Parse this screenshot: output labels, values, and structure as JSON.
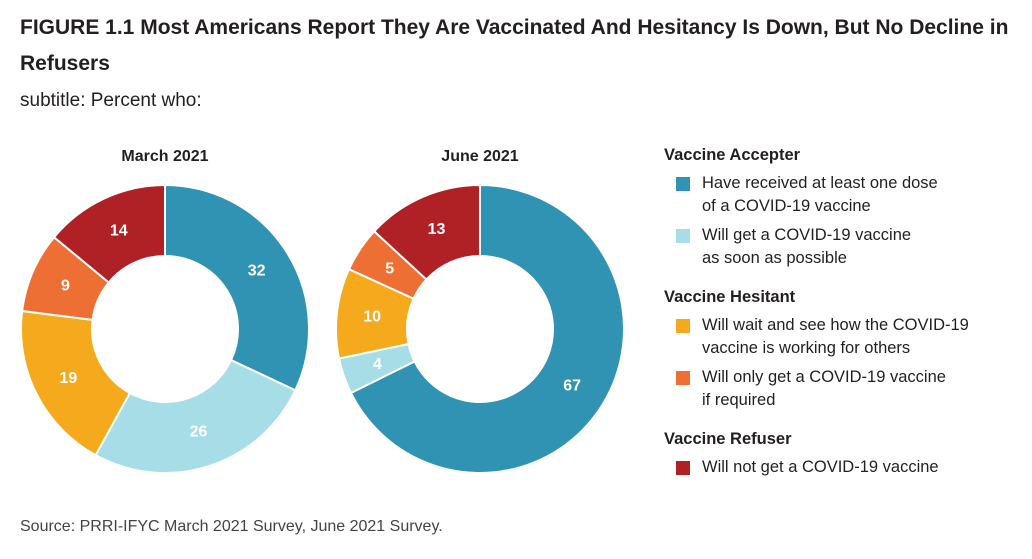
{
  "figure": {
    "title": "FIGURE 1.1  Most Americans Report They Are Vaccinated And Hesitancy Is Down, But No Decline in Refusers",
    "subtitle": "subtitle: Percent who:",
    "source": "Source: PRRI-IFYC March 2021 Survey, June 2021 Survey."
  },
  "legend": {
    "groups": [
      {
        "title": "Vaccine Accepter",
        "items": [
          {
            "label_lines": [
              "Have received at least one dose",
              "of a COVID-19 vaccine"
            ],
            "color": "#3193b3"
          },
          {
            "label_lines": [
              "Will get a COVID-19 vaccine",
              "as soon as possible"
            ],
            "color": "#a6dde6"
          }
        ]
      },
      {
        "title": "Vaccine Hesitant",
        "items": [
          {
            "label_lines": [
              "Will wait and see how the COVID-19",
              "vaccine is working for others"
            ],
            "color": "#f5a91d"
          },
          {
            "label_lines": [
              "Will only get a COVID-19 vaccine",
              "if required"
            ],
            "color": "#ee6f33"
          }
        ]
      },
      {
        "title": "Vaccine Refuser",
        "items": [
          {
            "label_lines": [
              "Will not get a COVID-19 vaccine"
            ],
            "color": "#b02126"
          }
        ]
      }
    ]
  },
  "chart_data": [
    {
      "type": "pie",
      "title": "March 2021",
      "categories": [
        "Have received at least one dose of a COVID-19 vaccine",
        "Will get a COVID-19 vaccine as soon as possible",
        "Will wait and see how the COVID-19 vaccine is working for others",
        "Will only get a COVID-19 vaccine if required",
        "Will not get a COVID-19 vaccine"
      ],
      "values": [
        32,
        26,
        19,
        9,
        14
      ],
      "colors": [
        "#3193b3",
        "#a6dde6",
        "#f5a91d",
        "#ee6f33",
        "#b02126"
      ]
    },
    {
      "type": "pie",
      "title": "June 2021",
      "categories": [
        "Have received at least one dose of a COVID-19 vaccine",
        "Will get a COVID-19 vaccine as soon as possible",
        "Will wait and see how the COVID-19 vaccine is working for others",
        "Will only get a COVID-19 vaccine if required",
        "Will not get a COVID-19 vaccine"
      ],
      "values": [
        67,
        4,
        10,
        5,
        13
      ],
      "colors": [
        "#3193b3",
        "#a6dde6",
        "#f5a91d",
        "#ee6f33",
        "#b02126"
      ]
    }
  ]
}
